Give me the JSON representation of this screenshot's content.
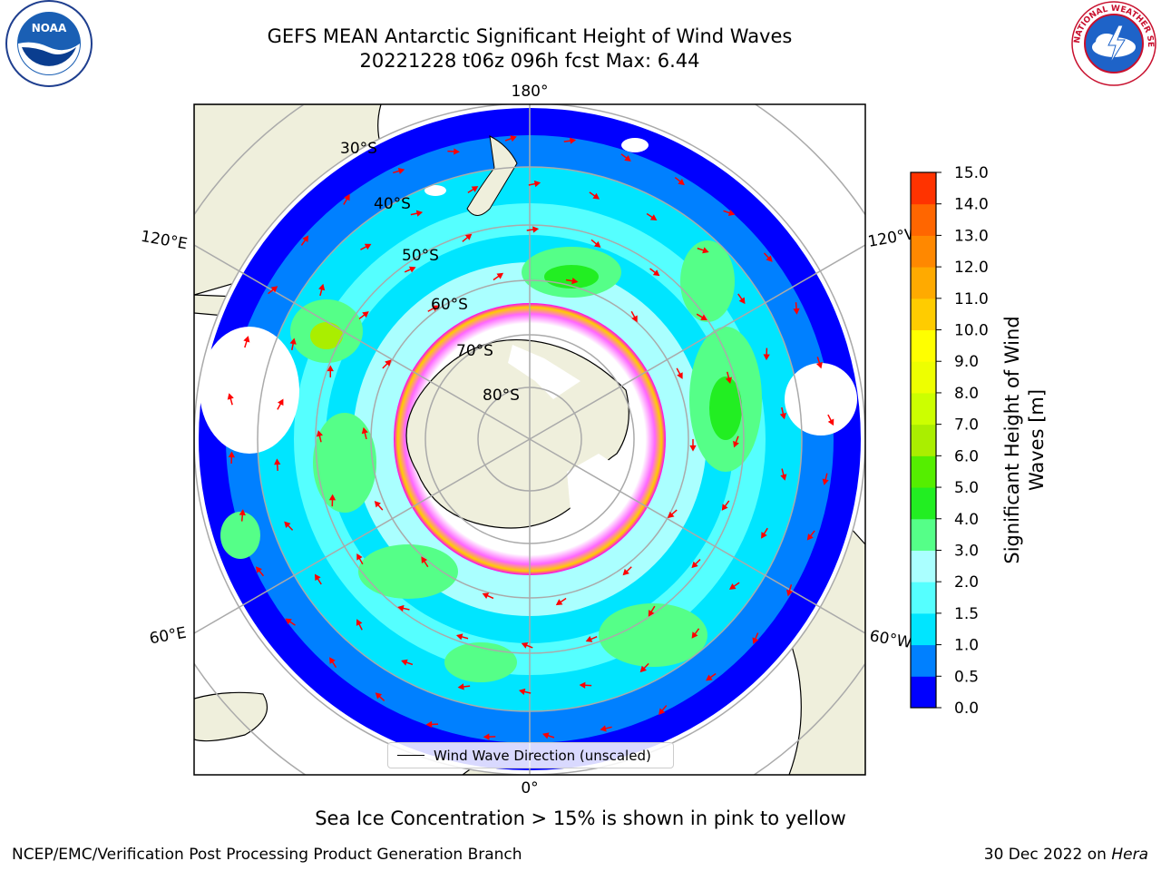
{
  "title": {
    "line1": "GEFS MEAN Antarctic Significant Height of Wind Waves",
    "line2": "20221228 t06z 096h fcst   Max: 6.44"
  },
  "logos": {
    "noaa_text": "NOAA",
    "nws_text": "NATIONAL WEATHER SERVICE"
  },
  "map": {
    "longitude_labels": {
      "top": "180°",
      "bottom": "0°",
      "upper_left": "120°E",
      "lower_left": "60°E",
      "upper_right": "120°W",
      "lower_right": "60°W"
    },
    "latitude_labels": [
      "30°S",
      "40°S",
      "50°S",
      "60°S",
      "70°S",
      "80°S"
    ],
    "legend": "Wind Wave Direction (unscaled)"
  },
  "colorbar": {
    "label_line1": "Significant Height of Wind",
    "label_line2": "Waves [m]",
    "ticks": [
      "0.0",
      "0.5",
      "1.0",
      "1.5",
      "2.0",
      "3.0",
      "4.0",
      "5.0",
      "6.0",
      "7.0",
      "8.0",
      "9.0",
      "10.0",
      "11.0",
      "12.0",
      "13.0",
      "14.0",
      "15.0"
    ],
    "colors": [
      "#0000ff",
      "#0080ff",
      "#00e5ff",
      "#55ffff",
      "#aaffff",
      "#55ff88",
      "#22ee22",
      "#55ee00",
      "#aaee00",
      "#ccff00",
      "#eeff00",
      "#ffff00",
      "#ffcc00",
      "#ffaa00",
      "#ff8800",
      "#ff6600",
      "#ff3300"
    ]
  },
  "footnote": "Sea Ice Concentration > 15% is shown in pink to yellow",
  "credit": "NCEP/EMC/Verification Post Processing Product Generation Branch",
  "date": {
    "text": "30 Dec 2022 on ",
    "machine": "Hera"
  }
}
